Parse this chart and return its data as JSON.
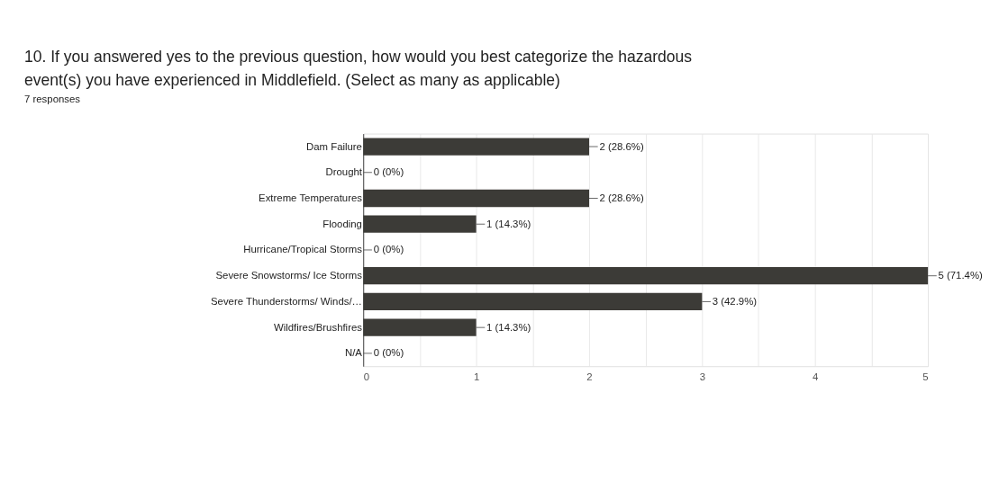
{
  "chart_data": {
    "type": "bar",
    "orientation": "horizontal",
    "title": "10. If you answered yes to the previous question, how would you best categorize the hazardous event(s) you have experienced in Middlefield. (Select as many as applicable)",
    "subtitle": "7 responses",
    "categories": [
      "Dam Failure",
      "Drought",
      "Extreme Temperatures",
      "Flooding",
      "Hurricane/Tropical Storms",
      "Severe Snowstorms/ Ice Storms",
      "Severe Thunderstorms/ Winds/…",
      "Wildfires/Brushfires",
      "N/A"
    ],
    "values": [
      2,
      0,
      2,
      1,
      0,
      5,
      3,
      1,
      0
    ],
    "value_labels": [
      "2 (28.6%)",
      "0 (0%)",
      "2 (28.6%)",
      "1 (14.3%)",
      "0 (0%)",
      "5 (71.4%)",
      "3 (42.9%)",
      "1 (14.3%)",
      "0 (0%)"
    ],
    "color": "#3c3b37",
    "xlim": [
      0,
      5
    ],
    "xticks": [
      0,
      {
        "value": 0.5,
        "label": null
      },
      1,
      {
        "value": 1.5,
        "label": null
      },
      2,
      {
        "value": 2.5,
        "label": null
      },
      3,
      {
        "value": 3.5,
        "label": null
      },
      4,
      {
        "value": 4.5,
        "label": null
      },
      5
    ],
    "grid": "x"
  }
}
